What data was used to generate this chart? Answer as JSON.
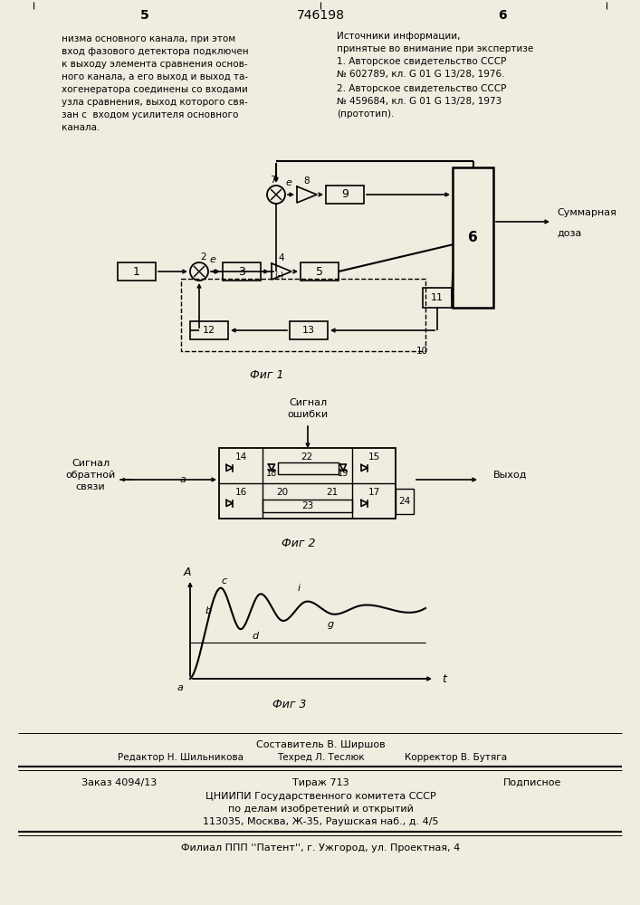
{
  "page_number_left": "5",
  "patent_number": "746198",
  "page_number_right": "6",
  "left_text_lines": [
    "низма основного канала, при этом",
    "вход фазового детектора подключен",
    "к выходу элемента сравнения основ-",
    "ного канала, а его выход и выход та-",
    "хогенератора соединены со входами",
    "узла сравнения, выход которого свя-",
    "зан с  входом усилителя основного",
    "канала."
  ],
  "right_text_title_lines": [
    "Источники информации,",
    "принятые во внимание при экспертизе"
  ],
  "right_ref1_lines": [
    "1. Авторское свидетельство СССР",
    "№ 602789, кл. G 01 G 13/28, 1976."
  ],
  "right_ref2_lines": [
    "2. Авторское свидетельство СССР",
    "№ 459684, кл. G 01 G 13/28, 1973",
    "(прототип)."
  ],
  "fig1_label": "Фиг 1",
  "fig2_label": "Фиг 2",
  "fig3_label": "Фиг 3",
  "summ_text_line1": "Суммарная",
  "summ_text_line2": "доза",
  "signal_error_line1": "Сигнал",
  "signal_error_line2": "ошибки",
  "signal_feedback_line1": "Сигнал",
  "signal_feedback_line2": "обратной",
  "signal_feedback_line3": "связи",
  "vyhod": "Выход",
  "footer_comp": "Составитель В. Ширшов",
  "footer_edit": "Редактор Н. Шильникова",
  "footer_tech": "Техред Л. Теслюк",
  "footer_corr": "Корректор В. Бутяга",
  "footer_order": "Заказ 4094/13",
  "footer_tirazh": "Тираж 713",
  "footer_podp": "Подписное",
  "footer_org1": "ЦНИИПИ Государственного комитета СССР",
  "footer_org2": "по делам изобретений и открытий",
  "footer_org3": "113035, Москва, Ж-35, Раушская наб., д. 4/5",
  "footer_filial": "Филиал ППП ''Патент'', г. Ужгород, ул. Проектная, 4",
  "bg_color": "#f0ece0"
}
